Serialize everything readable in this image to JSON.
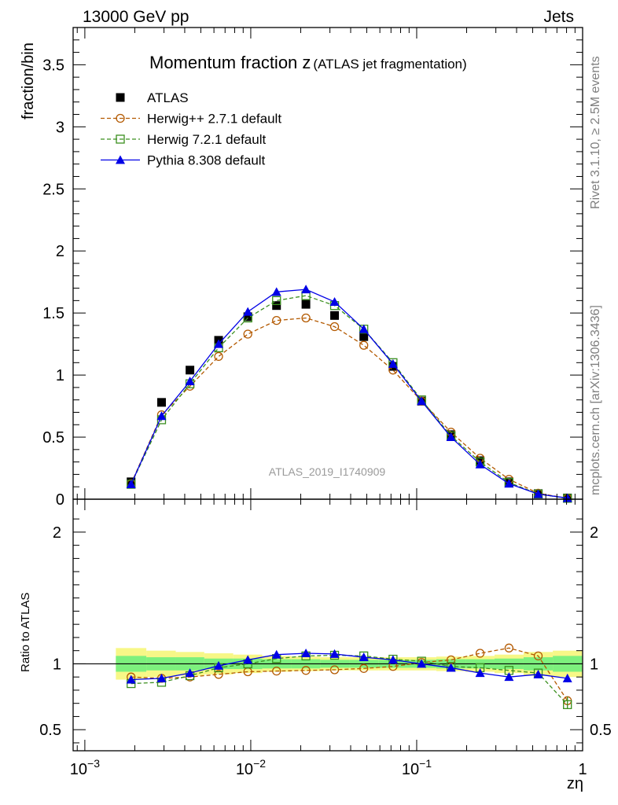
{
  "header": {
    "left": "13000 GeV pp",
    "right": "Jets"
  },
  "side_labels": {
    "rivet": "Rivet 3.1.10, ≥ 2.5M events",
    "mcplots": "mcplots.cern.ch [arXiv:1306.3436]"
  },
  "colors": {
    "atlas": "#000000",
    "herwigpp": "#b35900",
    "herwig7": "#3a8f1e",
    "pythia": "#0000e6",
    "band_inner": "#7df07d",
    "band_outer": "#f7f787"
  },
  "chart_data": [
    {
      "type": "line",
      "title": "Momentum fraction z",
      "title_suffix": "(ATLAS jet fragmentation)",
      "ylabel": "fraction/bin",
      "analysis_label": "ATLAS_2019_I1740909",
      "xscale": "log",
      "xlim": [
        0.00085,
        1.0
      ],
      "ylim": [
        0,
        3.8
      ],
      "yticks": [
        "0",
        "0.5",
        "1",
        "1.5",
        "2",
        "2.5",
        "3",
        "3.5"
      ],
      "legend_position": "top-left",
      "x": [
        0.0019,
        0.0029,
        0.0043,
        0.0064,
        0.0096,
        0.0143,
        0.0215,
        0.032,
        0.048,
        0.072,
        0.107,
        0.161,
        0.241,
        0.36,
        0.54,
        0.81
      ],
      "series": [
        {
          "name": "ATLAS",
          "marker": "square-filled",
          "style": "none",
          "values": [
            0.14,
            0.78,
            1.04,
            1.28,
            1.47,
            1.56,
            1.57,
            1.48,
            1.31,
            1.07,
            0.79,
            0.52,
            0.31,
            0.14,
            0.045,
            0.01
          ]
        },
        {
          "name": "Herwig++ 2.7.1 default",
          "marker": "circle-open",
          "style": "dashed",
          "values": [
            0.125,
            0.68,
            0.91,
            1.15,
            1.33,
            1.44,
            1.46,
            1.39,
            1.24,
            1.04,
            0.79,
            0.54,
            0.33,
            0.16,
            0.048,
            0.007
          ]
        },
        {
          "name": "Herwig 7.2.1 default",
          "marker": "square-open",
          "style": "dashed",
          "values": [
            0.12,
            0.64,
            0.93,
            1.22,
            1.46,
            1.6,
            1.64,
            1.56,
            1.37,
            1.1,
            0.8,
            0.51,
            0.3,
            0.135,
            0.042,
            0.007
          ]
        },
        {
          "name": "Pythia 8.308 default",
          "marker": "triangle-filled",
          "style": "solid",
          "values": [
            0.12,
            0.67,
            0.95,
            1.25,
            1.51,
            1.67,
            1.69,
            1.59,
            1.37,
            1.09,
            0.79,
            0.5,
            0.28,
            0.125,
            0.041,
            0.009
          ]
        }
      ]
    },
    {
      "type": "line",
      "ylabel": "Ratio to ATLAS",
      "xlabel": "zη",
      "xscale": "log",
      "xlim": [
        0.00085,
        1.0
      ],
      "ylim": [
        0.34,
        2.25
      ],
      "yticks": [
        "0.5",
        "1",
        "2"
      ],
      "xticks": [
        "10",
        "10",
        "10",
        "1"
      ],
      "xtick_exponents": [
        "−3",
        "−2",
        "−1",
        ""
      ],
      "reference_line": 1.0,
      "band_inner_halfwidth": [
        0.06,
        0.05,
        0.05,
        0.04,
        0.04,
        0.035,
        0.035,
        0.03,
        0.03,
        0.03,
        0.03,
        0.035,
        0.035,
        0.04,
        0.05,
        0.06
      ],
      "band_outer_halfwidth": [
        0.12,
        0.1,
        0.09,
        0.08,
        0.07,
        0.06,
        0.055,
        0.05,
        0.05,
        0.05,
        0.05,
        0.055,
        0.06,
        0.07,
        0.09,
        0.1
      ],
      "series": [
        {
          "name": "Herwig++ 2.7.1 default",
          "marker": "circle-open",
          "style": "dashed",
          "values": [
            0.9,
            0.89,
            0.9,
            0.92,
            0.94,
            0.945,
            0.95,
            0.955,
            0.965,
            0.98,
            1.01,
            1.03,
            1.08,
            1.12,
            1.06,
            0.72
          ]
        },
        {
          "name": "Herwig 7.2.1 default",
          "marker": "square-open",
          "style": "dashed",
          "values": [
            0.85,
            0.86,
            0.91,
            0.97,
            1.0,
            1.04,
            1.06,
            1.065,
            1.06,
            1.035,
            1.02,
            0.98,
            0.97,
            0.95,
            0.93,
            0.69
          ]
        },
        {
          "name": "Pythia 8.308 default",
          "marker": "triangle-filled",
          "style": "solid",
          "values": [
            0.88,
            0.89,
            0.93,
            0.985,
            1.03,
            1.07,
            1.08,
            1.075,
            1.05,
            1.03,
            1.0,
            0.97,
            0.93,
            0.9,
            0.92,
            0.89
          ]
        }
      ]
    }
  ]
}
